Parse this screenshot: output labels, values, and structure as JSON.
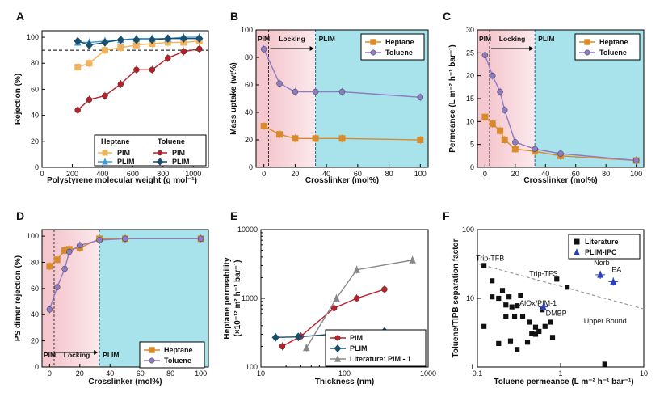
{
  "colors": {
    "heptane": "#d98a2b",
    "heptane_light": "#f0b35c",
    "toluene": "#b8202a",
    "toluene_purple": "#8e7cc3",
    "plim_blue": "#3b9ad9",
    "plim_dark": "#1b4e6b",
    "literature_gray": "#888888",
    "literature_black": "#111111",
    "ipc_blue": "#2a3fbf",
    "bg_pink": "#f5c8cf",
    "bg_cyan": "#a8e2ea"
  },
  "chart_data": [
    {
      "id": "A",
      "type": "line",
      "panel_label": "A",
      "xlabel": "Polystyrene molecular weight (g mol⁻¹)",
      "ylabel": "Rejection (%)",
      "xlim": [
        0,
        1100
      ],
      "ylim": [
        0,
        105
      ],
      "xticks": [
        0,
        200,
        400,
        600,
        800,
        1000
      ],
      "yticks": [
        0,
        20,
        40,
        60,
        80,
        100
      ],
      "reference_line": 90,
      "legend": {
        "group1": "Heptane",
        "group2": "Toluene",
        "entries": [
          "PIM",
          "PLIM",
          "PIM",
          "PLIM"
        ]
      },
      "x": [
        236,
        312,
        416,
        520,
        624,
        728,
        832,
        936,
        1040
      ],
      "series": [
        {
          "name": "Heptane PIM",
          "values": [
            77,
            80,
            90,
            92,
            94,
            95,
            96,
            96,
            97
          ]
        },
        {
          "name": "Heptane PLIM",
          "values": [
            96,
            96,
            97,
            98,
            99,
            99,
            99,
            100,
            100
          ]
        },
        {
          "name": "Toluene PIM",
          "values": [
            44,
            52,
            55,
            64,
            75,
            75,
            84,
            89,
            91
          ]
        },
        {
          "name": "Toluene PLIM",
          "values": [
            97,
            94,
            96,
            98,
            98,
            98,
            99,
            99,
            99
          ]
        }
      ]
    },
    {
      "id": "B",
      "type": "line",
      "panel_label": "B",
      "xlabel": "Crosslinker (mol%)",
      "ylabel": "Mass uptake (wt%)",
      "xlim": [
        -5,
        105
      ],
      "ylim": [
        0,
        100
      ],
      "xticks": [
        0,
        20,
        40,
        60,
        80,
        100
      ],
      "yticks": [
        0,
        20,
        40,
        60,
        80,
        100
      ],
      "regions": [
        "PIM",
        "Locking",
        "PLIM"
      ],
      "boundaries": [
        3,
        33
      ],
      "x": [
        0,
        10,
        20,
        33,
        50,
        100
      ],
      "series": [
        {
          "name": "Heptane",
          "values": [
            30,
            24,
            21,
            21,
            21,
            20
          ]
        },
        {
          "name": "Toluene",
          "values": [
            86,
            61,
            55,
            55,
            55,
            51
          ]
        }
      ]
    },
    {
      "id": "C",
      "type": "line",
      "panel_label": "C",
      "xlabel": "Crosslinker (mol%)",
      "ylabel": "Permeance (L m⁻² h⁻¹ bar⁻¹)",
      "xlim": [
        -5,
        105
      ],
      "ylim": [
        0,
        30
      ],
      "xticks": [
        0,
        20,
        40,
        60,
        80,
        100
      ],
      "yticks": [
        0,
        5,
        10,
        15,
        20,
        25,
        30
      ],
      "regions": [
        "PIM",
        "Locking",
        "PLIM"
      ],
      "boundaries": [
        3,
        33
      ],
      "x": [
        0,
        5,
        10,
        13,
        20,
        33,
        50,
        100
      ],
      "series": [
        {
          "name": "Heptane",
          "values": [
            11,
            9.5,
            8,
            6,
            4,
            3.5,
            2.5,
            1.5
          ]
        },
        {
          "name": "Toluene",
          "values": [
            24.5,
            20,
            16.5,
            12.5,
            5.5,
            4,
            3,
            1.5
          ]
        }
      ]
    },
    {
      "id": "D",
      "type": "line",
      "panel_label": "D",
      "xlabel": "Crosslinker (mol%)",
      "ylabel": "PS dimer rejection (%)",
      "xlim": [
        -5,
        105
      ],
      "ylim": [
        0,
        105
      ],
      "xticks": [
        0,
        20,
        40,
        60,
        80,
        100
      ],
      "yticks": [
        0,
        20,
        40,
        60,
        80,
        100
      ],
      "regions": [
        "PIM",
        "Locking",
        "PLIM"
      ],
      "boundaries": [
        3,
        33
      ],
      "x": [
        0,
        5,
        10,
        13,
        20,
        33,
        50,
        100
      ],
      "series": [
        {
          "name": "Heptane",
          "values": [
            77,
            82,
            89,
            90,
            91,
            98,
            98,
            98
          ]
        },
        {
          "name": "Toluene",
          "values": [
            44,
            61,
            75,
            88,
            93,
            97,
            98,
            98
          ]
        }
      ]
    },
    {
      "id": "E",
      "type": "line",
      "panel_label": "E",
      "xlabel": "Thickness (nm)",
      "ylabel": "Heptane permeability",
      "ylabel2": "(×10⁻¹² m² h⁻¹ bar⁻¹)",
      "xscale": "log",
      "yscale": "log",
      "xlim": [
        10,
        1000
      ],
      "ylim": [
        100,
        10000
      ],
      "xticks": [
        10,
        100,
        1000
      ],
      "yticks": [
        100,
        1000,
        10000
      ],
      "series": [
        {
          "name": "PIM",
          "x": [
            18,
            30,
            75,
            140,
            300
          ],
          "values": [
            200,
            280,
            720,
            1000,
            1350
          ]
        },
        {
          "name": "PLIM",
          "x": [
            15,
            28,
            70,
            140,
            300
          ],
          "values": [
            270,
            275,
            300,
            245,
            330
          ]
        },
        {
          "name": "Literature: PIM - 1",
          "x": [
            35,
            80,
            140,
            650
          ],
          "values": [
            190,
            1000,
            2600,
            3600
          ]
        }
      ]
    },
    {
      "id": "F",
      "type": "scatter",
      "panel_label": "F",
      "xlabel": "Toluene permeance (L m⁻² h⁻¹ bar⁻¹)",
      "ylabel": "Toluene/TIPB separation factor",
      "xscale": "log",
      "yscale": "log",
      "xlim": [
        0.1,
        10
      ],
      "ylim": [
        1,
        100
      ],
      "xticks": [
        0.1,
        1,
        10
      ],
      "yticks": [
        1,
        10,
        100
      ],
      "legend": [
        "Literature",
        "PLIM-IPC"
      ],
      "upper_bound_label": "Upper Bound",
      "upper_bound": [
        [
          0.1,
          32
        ],
        [
          10,
          7
        ]
      ],
      "literature": [
        [
          0.12,
          30
        ],
        [
          0.15,
          18
        ],
        [
          0.15,
          10.5
        ],
        [
          0.18,
          10
        ],
        [
          0.2,
          13
        ],
        [
          0.22,
          8
        ],
        [
          0.24,
          10.5
        ],
        [
          0.26,
          7.5
        ],
        [
          0.3,
          7.8
        ],
        [
          0.33,
          11
        ],
        [
          0.22,
          5.5
        ],
        [
          0.28,
          5.5
        ],
        [
          0.35,
          5.5
        ],
        [
          0.42,
          4.5
        ],
        [
          0.12,
          3.9
        ],
        [
          0.18,
          2.2
        ],
        [
          0.25,
          2.4
        ],
        [
          0.3,
          1.8
        ],
        [
          0.45,
          3.1
        ],
        [
          0.4,
          2.3
        ],
        [
          0.5,
          3
        ],
        [
          0.5,
          3.8
        ],
        [
          0.55,
          3.3
        ],
        [
          0.6,
          6.8
        ],
        [
          0.65,
          3.9
        ],
        [
          0.75,
          4.5
        ],
        [
          0.8,
          2.7
        ],
        [
          1.2,
          14.5
        ],
        [
          0.9,
          19
        ],
        [
          3.4,
          1.1
        ]
      ],
      "literature_labels": [
        {
          "text": "Trip-TFB",
          "x": 0.12,
          "y": 30
        },
        {
          "text": "Trip-TFS",
          "x": 0.9,
          "y": 19
        },
        {
          "text": "AlOx/PIM-1",
          "x": 0.6,
          "y": 6.8
        }
      ],
      "plim_ipc": [
        {
          "label": "Norb",
          "x": 3.0,
          "y": 22
        },
        {
          "label": "EA",
          "x": 4.3,
          "y": 17.5
        },
        {
          "label": "DMBP",
          "x": 0.62,
          "y": 7.5
        }
      ]
    }
  ]
}
